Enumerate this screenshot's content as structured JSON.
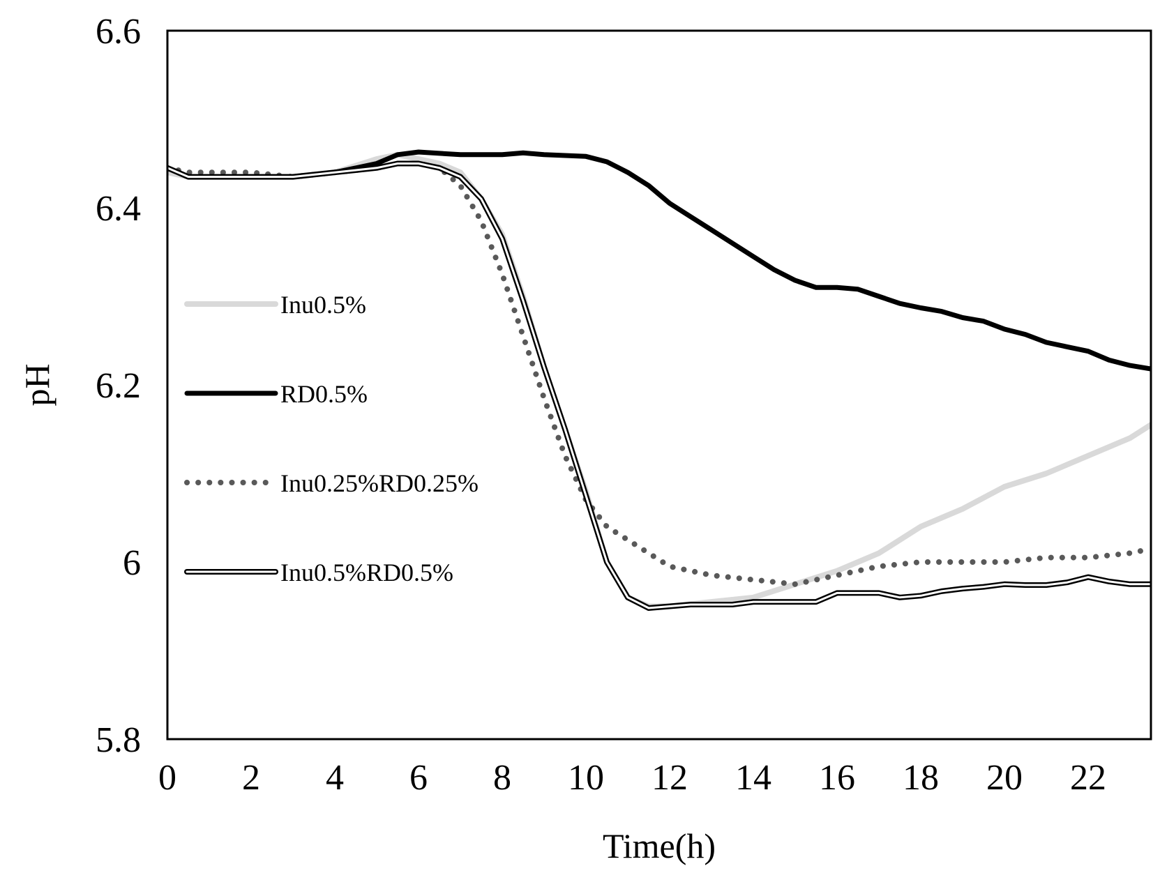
{
  "chart_data": {
    "type": "line",
    "title": "",
    "xlabel": "Time(h)",
    "ylabel": "pH",
    "xlim": [
      0,
      23.5
    ],
    "ylim": [
      5.8,
      6.6
    ],
    "xticks": [
      0,
      2,
      4,
      6,
      8,
      10,
      12,
      14,
      16,
      18,
      20,
      22
    ],
    "xtick_labels": [
      "0",
      "2",
      "4",
      "6",
      "8",
      "10",
      "12",
      "14",
      "16",
      "18",
      "20",
      "22"
    ],
    "yticks": [
      5.8,
      6.0,
      6.2,
      6.4,
      6.6
    ],
    "ytick_labels": [
      "5.8",
      "6",
      "6.2",
      "6.4",
      "6.6"
    ],
    "grid": false,
    "legend_position": "left",
    "series": [
      {
        "name": "Inu0.5%",
        "style": "light",
        "color": "#d9d9d9",
        "points": [
          [
            0,
            6.44
          ],
          [
            0.5,
            6.435
          ],
          [
            1,
            6.435
          ],
          [
            2,
            6.435
          ],
          [
            3,
            6.435
          ],
          [
            4,
            6.44
          ],
          [
            5,
            6.455
          ],
          [
            5.5,
            6.46
          ],
          [
            6,
            6.455
          ],
          [
            6.5,
            6.45
          ],
          [
            7,
            6.44
          ],
          [
            7.5,
            6.41
          ],
          [
            8,
            6.37
          ],
          [
            8.5,
            6.3
          ],
          [
            9,
            6.22
          ],
          [
            9.5,
            6.15
          ],
          [
            10,
            6.08
          ],
          [
            10.5,
            6.0
          ],
          [
            11,
            5.96
          ],
          [
            11.5,
            5.95
          ],
          [
            12,
            5.95
          ],
          [
            13,
            5.955
          ],
          [
            14,
            5.96
          ],
          [
            15,
            5.975
          ],
          [
            16,
            5.99
          ],
          [
            17,
            6.01
          ],
          [
            18,
            6.04
          ],
          [
            19,
            6.06
          ],
          [
            20,
            6.085
          ],
          [
            21,
            6.1
          ],
          [
            22,
            6.12
          ],
          [
            23,
            6.14
          ],
          [
            23.5,
            6.155
          ]
        ]
      },
      {
        "name": "RD0.5%",
        "style": "thick",
        "color": "#000000",
        "points": [
          [
            0,
            6.445
          ],
          [
            0.5,
            6.435
          ],
          [
            1,
            6.435
          ],
          [
            2,
            6.435
          ],
          [
            3,
            6.435
          ],
          [
            4,
            6.44
          ],
          [
            5,
            6.45
          ],
          [
            5.5,
            6.46
          ],
          [
            6,
            6.463
          ],
          [
            7,
            6.46
          ],
          [
            8,
            6.46
          ],
          [
            8.5,
            6.462
          ],
          [
            9,
            6.46
          ],
          [
            10,
            6.458
          ],
          [
            10.5,
            6.452
          ],
          [
            11,
            6.44
          ],
          [
            11.5,
            6.425
          ],
          [
            12,
            6.405
          ],
          [
            12.5,
            6.39
          ],
          [
            13,
            6.375
          ],
          [
            13.5,
            6.36
          ],
          [
            14,
            6.345
          ],
          [
            14.5,
            6.33
          ],
          [
            15,
            6.318
          ],
          [
            15.5,
            6.31
          ],
          [
            16,
            6.31
          ],
          [
            16.5,
            6.308
          ],
          [
            17,
            6.3
          ],
          [
            17.5,
            6.292
          ],
          [
            18,
            6.287
          ],
          [
            18.5,
            6.283
          ],
          [
            19,
            6.276
          ],
          [
            19.5,
            6.272
          ],
          [
            20,
            6.263
          ],
          [
            20.5,
            6.257
          ],
          [
            21,
            6.248
          ],
          [
            21.5,
            6.243
          ],
          [
            22,
            6.238
          ],
          [
            22.5,
            6.228
          ],
          [
            23,
            6.222
          ],
          [
            23.5,
            6.218
          ]
        ]
      },
      {
        "name": "Inu0.25%RD0.25%",
        "style": "dotted",
        "color": "#595959",
        "points": [
          [
            0,
            6.445
          ],
          [
            0.5,
            6.44
          ],
          [
            1,
            6.44
          ],
          [
            2,
            6.44
          ],
          [
            3,
            6.435
          ],
          [
            4,
            6.44
          ],
          [
            5,
            6.445
          ],
          [
            5.5,
            6.45
          ],
          [
            6,
            6.45
          ],
          [
            6.5,
            6.445
          ],
          [
            7,
            6.425
          ],
          [
            7.5,
            6.385
          ],
          [
            8,
            6.325
          ],
          [
            8.5,
            6.255
          ],
          [
            9,
            6.185
          ],
          [
            9.5,
            6.12
          ],
          [
            10,
            6.07
          ],
          [
            10.5,
            6.04
          ],
          [
            11,
            6.025
          ],
          [
            11.5,
            6.01
          ],
          [
            12,
            5.995
          ],
          [
            13,
            5.985
          ],
          [
            14,
            5.98
          ],
          [
            15,
            5.975
          ],
          [
            16,
            5.985
          ],
          [
            17,
            5.995
          ],
          [
            18,
            6.0
          ],
          [
            19,
            6.0
          ],
          [
            20,
            6.0
          ],
          [
            21,
            6.005
          ],
          [
            22,
            6.005
          ],
          [
            23,
            6.01
          ],
          [
            23.5,
            6.015
          ]
        ]
      },
      {
        "name": "Inu0.5%RD0.5%",
        "style": "double",
        "color": "#000000",
        "points": [
          [
            0,
            6.445
          ],
          [
            0.5,
            6.435
          ],
          [
            1,
            6.435
          ],
          [
            2,
            6.435
          ],
          [
            3,
            6.435
          ],
          [
            4,
            6.44
          ],
          [
            5,
            6.445
          ],
          [
            5.5,
            6.45
          ],
          [
            6,
            6.45
          ],
          [
            6.5,
            6.445
          ],
          [
            7,
            6.435
          ],
          [
            7.5,
            6.41
          ],
          [
            8,
            6.365
          ],
          [
            8.5,
            6.295
          ],
          [
            9,
            6.22
          ],
          [
            9.5,
            6.15
          ],
          [
            10,
            6.075
          ],
          [
            10.5,
            6.0
          ],
          [
            11,
            5.96
          ],
          [
            11.5,
            5.948
          ],
          [
            12,
            5.95
          ],
          [
            12.5,
            5.952
          ],
          [
            13,
            5.952
          ],
          [
            13.5,
            5.952
          ],
          [
            14,
            5.955
          ],
          [
            14.5,
            5.955
          ],
          [
            15,
            5.955
          ],
          [
            15.5,
            5.955
          ],
          [
            16,
            5.965
          ],
          [
            16.5,
            5.965
          ],
          [
            17,
            5.965
          ],
          [
            17.5,
            5.96
          ],
          [
            18,
            5.962
          ],
          [
            18.5,
            5.967
          ],
          [
            19,
            5.97
          ],
          [
            19.5,
            5.972
          ],
          [
            20,
            5.975
          ],
          [
            20.5,
            5.974
          ],
          [
            21,
            5.974
          ],
          [
            21.5,
            5.977
          ],
          [
            22,
            5.983
          ],
          [
            22.5,
            5.978
          ],
          [
            23,
            5.975
          ],
          [
            23.5,
            5.975
          ]
        ]
      }
    ]
  }
}
